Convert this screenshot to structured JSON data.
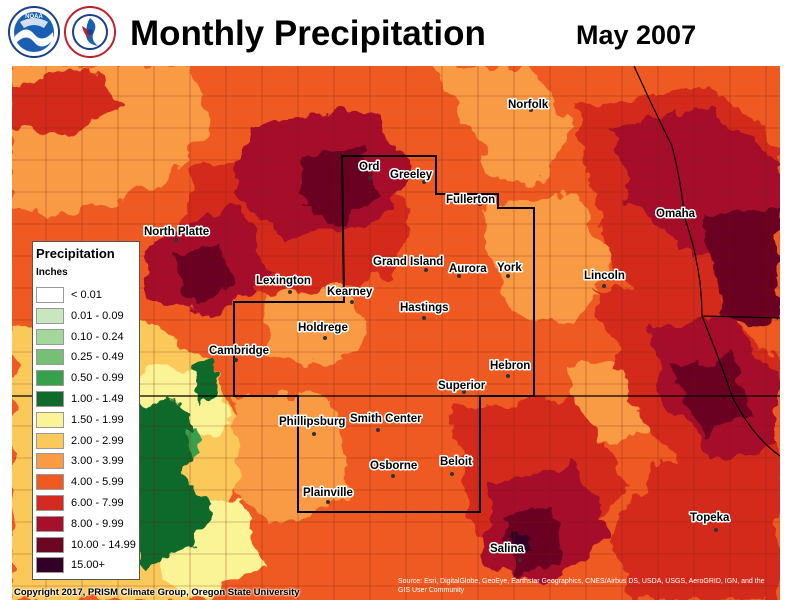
{
  "header": {
    "title": "Monthly Precipitation",
    "date": "May 2007",
    "logos": [
      "noaa-logo",
      "national-weather-service-logo"
    ],
    "noaa_text": "NOAA",
    "nws_text": "NATIONAL WEATHER SERVICE"
  },
  "legend": {
    "title": "Precipitation",
    "units": "Inches",
    "classes": [
      {
        "label": "< 0.01",
        "color": "#ffffff"
      },
      {
        "label": "0.01 - 0.09",
        "color": "#c8e6c0"
      },
      {
        "label": "0.10 - 0.24",
        "color": "#a4d79c"
      },
      {
        "label": "0.25 - 0.49",
        "color": "#74c175"
      },
      {
        "label": "0.50 - 0.99",
        "color": "#37a04d"
      },
      {
        "label": "1.00 - 1.49",
        "color": "#0f6b2b"
      },
      {
        "label": "1.50 - 1.99",
        "color": "#fbf496"
      },
      {
        "label": "2.00 - 2.99",
        "color": "#fbc95a"
      },
      {
        "label": "3.00 - 3.99",
        "color": "#f99a44"
      },
      {
        "label": "4.00 - 5.99",
        "color": "#ee5a22"
      },
      {
        "label": "6.00 - 7.99",
        "color": "#d32b1f"
      },
      {
        "label": "8.00 - 9.99",
        "color": "#a6102a"
      },
      {
        "label": "10.00 - 14.99",
        "color": "#6b0623"
      },
      {
        "label": "15.00+",
        "color": "#300026"
      }
    ]
  },
  "cities": [
    {
      "name": "Norfolk"
    },
    {
      "name": "Ord"
    },
    {
      "name": "Greeley"
    },
    {
      "name": "Fullerton"
    },
    {
      "name": "North Platte"
    },
    {
      "name": "Omaha"
    },
    {
      "name": "Grand Island"
    },
    {
      "name": "Aurora"
    },
    {
      "name": "York"
    },
    {
      "name": "Lincoln"
    },
    {
      "name": "Lexington"
    },
    {
      "name": "Kearney"
    },
    {
      "name": "Hastings"
    },
    {
      "name": "Holdrege"
    },
    {
      "name": "Cambridge"
    },
    {
      "name": "Hebron"
    },
    {
      "name": "Superior"
    },
    {
      "name": "Phillipsburg"
    },
    {
      "name": "Smith Center"
    },
    {
      "name": "Beloit"
    },
    {
      "name": "Osborne"
    },
    {
      "name": "Plainville"
    },
    {
      "name": "Topeka"
    },
    {
      "name": "Salina"
    }
  ],
  "copyright": "Copyright 2017, PRISM Climate Group, Oregon State University",
  "attribution": "Source: Esri, DigitalGlobe, GeoEye, Earthstar Geographics, CNES/Airbus DS, USDA, USGS, AeroGRID, IGN, and the GIS User Community"
}
